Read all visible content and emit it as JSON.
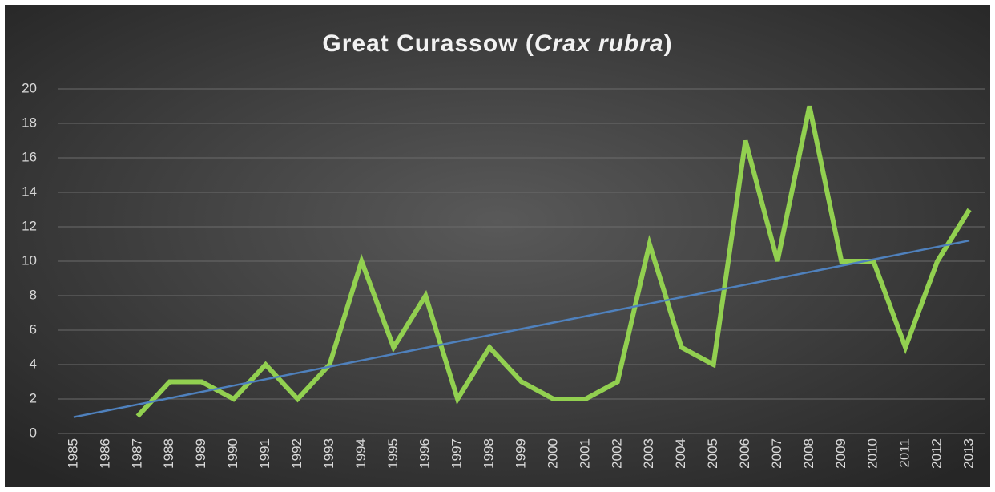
{
  "chart_data": {
    "type": "line",
    "title": [
      "Great Curassow (",
      "Crax rubra",
      ")"
    ],
    "categories": [
      "1985",
      "1986",
      "1987",
      "1988",
      "1989",
      "1990",
      "1991",
      "1992",
      "1993",
      "1994",
      "1995",
      "1996",
      "1997",
      "1998",
      "1999",
      "2000",
      "2001",
      "2002",
      "2003",
      "2004",
      "2005",
      "2006",
      "2007",
      "2008",
      "2009",
      "2010",
      "2011",
      "2012",
      "2013"
    ],
    "values": [
      null,
      null,
      1,
      3,
      3,
      2,
      4,
      2,
      4,
      10,
      5,
      8,
      2,
      5,
      3,
      2,
      2,
      3,
      11,
      5,
      4,
      17,
      10,
      19,
      10,
      10,
      5,
      10,
      13
    ],
    "color": "#92d050",
    "trendline": {
      "color": "#4f81bd",
      "values": [
        0.95,
        11.2
      ]
    },
    "ylim": [
      0,
      20
    ],
    "yticks": [
      0,
      2,
      4,
      6,
      8,
      10,
      12,
      14,
      16,
      18,
      20
    ],
    "grid": true
  }
}
